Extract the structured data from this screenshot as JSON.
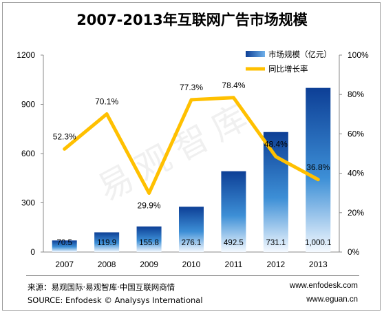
{
  "title": "2007-2013年互联网广告市场规模",
  "watermark": "易观智库",
  "footer": {
    "source_cn": "来源：易观国际·易观智库·中国互联网商情",
    "source_en": "SOURCE: Enfodesk © Analysys International",
    "url1": "www.enfodesk.com",
    "url2": "www.eguan.cn"
  },
  "chart_data": {
    "type": "bar",
    "title": "2007-2013年互联网广告市场规模",
    "categories": [
      "2007",
      "2008",
      "2009",
      "2010",
      "2011",
      "2012",
      "2013"
    ],
    "series": [
      {
        "name": "市场规模（亿元）",
        "type": "bar",
        "axis": "left",
        "values": [
          70.5,
          119.9,
          155.8,
          276.1,
          492.5,
          731.1,
          1000.1
        ],
        "labels": [
          "70.5",
          "119.9",
          "155.8",
          "276.1",
          "492.5",
          "731.1",
          "1,000.1"
        ]
      },
      {
        "name": "同比增长率",
        "type": "line",
        "axis": "right",
        "values": [
          52.3,
          70.1,
          29.9,
          77.3,
          78.4,
          48.4,
          36.8
        ],
        "labels": [
          "52.3%",
          "70.1%",
          "29.9%",
          "77.3%",
          "78.4%",
          "48.4%",
          "36.8%"
        ]
      }
    ],
    "left_axis": {
      "ylim": [
        0,
        1200
      ],
      "ticks": [
        "0",
        "300",
        "600",
        "900",
        "1200"
      ],
      "tick_values": [
        0,
        300,
        600,
        900,
        1200
      ]
    },
    "right_axis": {
      "ylim": [
        0,
        100
      ],
      "ticks": [
        "0%",
        "20%",
        "40%",
        "60%",
        "80%",
        "100%"
      ],
      "tick_values": [
        0,
        20,
        40,
        60,
        80,
        100
      ]
    },
    "legend_position": "top-right",
    "grid": false,
    "colors": {
      "bar_top": "#0d3f96",
      "bar_bottom": "#ffffff",
      "line": "#ffc000"
    }
  }
}
